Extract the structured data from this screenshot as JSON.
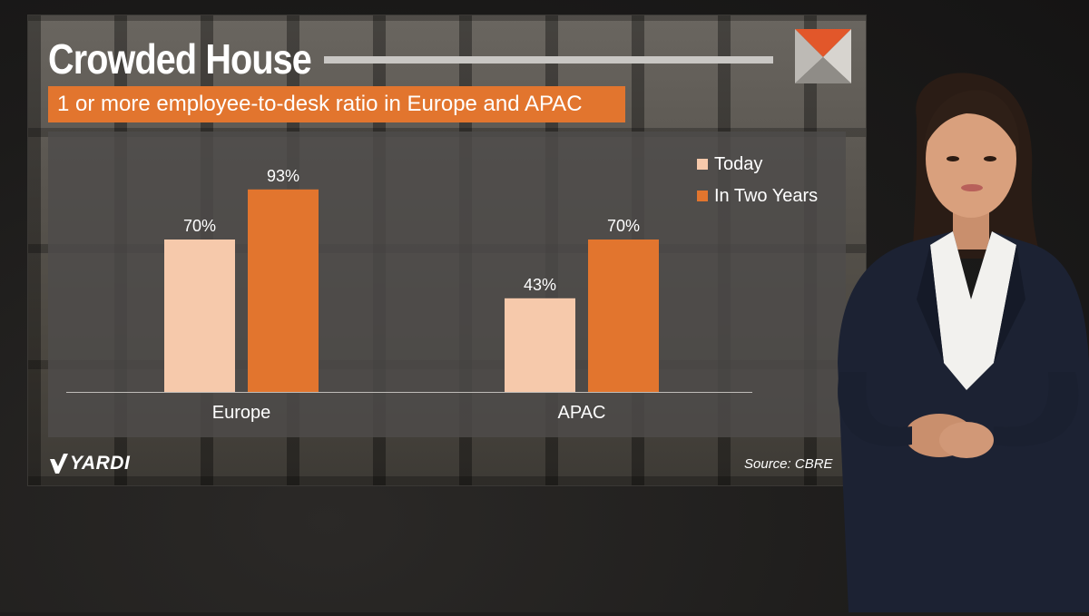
{
  "slide": {
    "title": "Crowded House",
    "subtitle": "1 or more employee-to-desk ratio in Europe and APAC",
    "brand": "YARDI",
    "source": "Source:  CBRE"
  },
  "colors": {
    "accent": "#e2752e",
    "today": "#f6c9ab",
    "in_two_years": "#e2752e"
  },
  "icons": {
    "brand_logo": "yardi-chevron-icon",
    "corner_logo": "triangle-logo-icon"
  },
  "chart_data": {
    "type": "bar",
    "categories": [
      "Europe",
      "APAC"
    ],
    "series": [
      {
        "name": "Today",
        "values": [
          70,
          43
        ],
        "labels": [
          "70%",
          "43%"
        ]
      },
      {
        "name": "In Two Years",
        "values": [
          93,
          70
        ],
        "labels": [
          "93%",
          "70%"
        ]
      }
    ],
    "ylim": [
      0,
      100
    ],
    "title": "",
    "xlabel": "",
    "ylabel": "",
    "grid": false,
    "legend_position": "top-right"
  }
}
